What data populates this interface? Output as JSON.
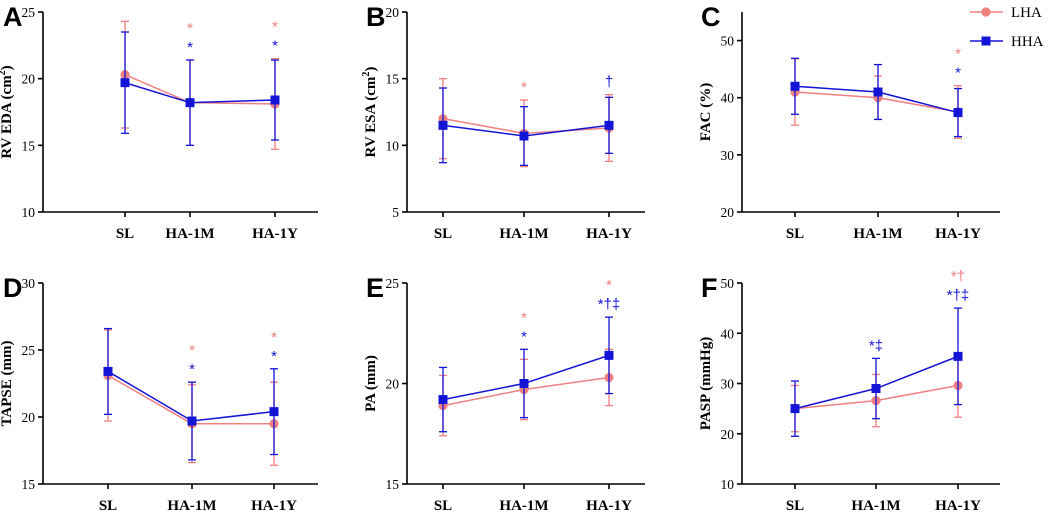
{
  "colors": {
    "LHA": "#F08080",
    "HHA": "#1414D6"
  },
  "legend": {
    "items": [
      {
        "key": "LHA",
        "label": "LHA"
      },
      {
        "key": "HHA",
        "label": "HHA"
      }
    ]
  },
  "chart_data": [
    {
      "type": "line",
      "panel": "A",
      "ylabel": "RV EDA (cm2)",
      "ylabel_main": "RV EDA (cm",
      "ylabel_sup": "2",
      "ylabel_tail": ")",
      "categories": [
        "SL",
        "HA-1M",
        "HA-1Y"
      ],
      "ylim": [
        10,
        25
      ],
      "yticks": [
        10,
        15,
        20,
        25
      ],
      "series": [
        {
          "name": "LHA",
          "values": [
            20.3,
            18.2,
            18.1
          ],
          "sd": [
            4.0,
            3.2,
            3.4
          ]
        },
        {
          "name": "HHA",
          "values": [
            19.7,
            18.2,
            18.4
          ],
          "sd": [
            3.8,
            3.2,
            3.0
          ]
        }
      ],
      "annotations": [
        {
          "category": "HA-1M",
          "series": "LHA",
          "text": "*"
        },
        {
          "category": "HA-1M",
          "series": "HHA",
          "text": "*"
        },
        {
          "category": "HA-1Y",
          "series": "LHA",
          "text": "*"
        },
        {
          "category": "HA-1Y",
          "series": "HHA",
          "text": "*"
        }
      ]
    },
    {
      "type": "line",
      "panel": "B",
      "ylabel": "RV ESA (cm2)",
      "ylabel_main": "RV ESA (cm",
      "ylabel_sup": "2",
      "ylabel_tail": ")",
      "categories": [
        "SL",
        "HA-1M",
        "HA-1Y"
      ],
      "ylim": [
        5,
        20
      ],
      "yticks": [
        5,
        10,
        15,
        20
      ],
      "series": [
        {
          "name": "LHA",
          "values": [
            12.0,
            10.9,
            11.3
          ],
          "sd": [
            3.0,
            2.5,
            2.5
          ]
        },
        {
          "name": "HHA",
          "values": [
            11.5,
            10.7,
            11.5
          ],
          "sd": [
            2.8,
            2.2,
            2.1
          ]
        }
      ],
      "annotations": [
        {
          "category": "HA-1M",
          "series": "LHA",
          "text": "*"
        },
        {
          "category": "HA-1Y",
          "series": "HHA",
          "text": "†"
        }
      ]
    },
    {
      "type": "line",
      "panel": "C",
      "ylabel": "FAC (%)",
      "ylabel_main": "FAC (%)",
      "ylabel_sup": "",
      "ylabel_tail": "",
      "categories": [
        "SL",
        "HA-1M",
        "HA-1Y"
      ],
      "ylim": [
        20,
        55
      ],
      "yticks": [
        20,
        30,
        40,
        50
      ],
      "series": [
        {
          "name": "LHA",
          "values": [
            41.0,
            40.0,
            37.5
          ],
          "sd": [
            5.8,
            3.8,
            4.6
          ]
        },
        {
          "name": "HHA",
          "values": [
            42.0,
            41.0,
            37.4
          ],
          "sd": [
            4.9,
            4.8,
            4.2
          ]
        }
      ],
      "annotations": [
        {
          "category": "HA-1Y",
          "series": "LHA",
          "text": "*"
        },
        {
          "category": "HA-1Y",
          "series": "HHA",
          "text": "*"
        }
      ]
    },
    {
      "type": "line",
      "panel": "D",
      "ylabel": "TAPSE (mm)",
      "ylabel_main": "TAPSE (mm)",
      "ylabel_sup": "",
      "ylabel_tail": "",
      "categories": [
        "SL",
        "HA-1M",
        "HA-1Y"
      ],
      "ylim": [
        15,
        30
      ],
      "yticks": [
        15,
        20,
        25,
        30
      ],
      "series": [
        {
          "name": "LHA",
          "values": [
            23.1,
            19.5,
            19.5
          ],
          "sd": [
            3.4,
            2.9,
            3.1
          ]
        },
        {
          "name": "HHA",
          "values": [
            23.4,
            19.7,
            20.4
          ],
          "sd": [
            3.2,
            2.9,
            3.2
          ]
        }
      ],
      "annotations": [
        {
          "category": "HA-1M",
          "series": "LHA",
          "text": "*"
        },
        {
          "category": "HA-1M",
          "series": "HHA",
          "text": "*"
        },
        {
          "category": "HA-1Y",
          "series": "LHA",
          "text": "*"
        },
        {
          "category": "HA-1Y",
          "series": "HHA",
          "text": "*"
        }
      ]
    },
    {
      "type": "line",
      "panel": "E",
      "ylabel": "PA (mm)",
      "ylabel_main": "PA (mm)",
      "ylabel_sup": "",
      "ylabel_tail": "",
      "categories": [
        "SL",
        "HA-1M",
        "HA-1Y"
      ],
      "ylim": [
        15,
        25
      ],
      "yticks": [
        15,
        20,
        25
      ],
      "series": [
        {
          "name": "LHA",
          "values": [
            18.9,
            19.7,
            20.3
          ],
          "sd": [
            1.5,
            1.5,
            1.4
          ]
        },
        {
          "name": "HHA",
          "values": [
            19.2,
            20.0,
            21.4
          ],
          "sd": [
            1.6,
            1.7,
            1.9
          ]
        }
      ],
      "annotations": [
        {
          "category": "HA-1M",
          "series": "LHA",
          "text": "*"
        },
        {
          "category": "HA-1M",
          "series": "HHA",
          "text": "*"
        },
        {
          "category": "HA-1Y",
          "series": "LHA",
          "text": "*"
        },
        {
          "category": "HA-1Y",
          "series": "HHA",
          "text": "*†‡"
        }
      ]
    },
    {
      "type": "line",
      "panel": "F",
      "ylabel": "PASP (mmHg)",
      "ylabel_main": "PASP (mmHg)",
      "ylabel_sup": "",
      "ylabel_tail": "",
      "categories": [
        "SL",
        "HA-1M",
        "HA-1Y"
      ],
      "ylim": [
        10,
        50
      ],
      "yticks": [
        10,
        20,
        30,
        40,
        50
      ],
      "series": [
        {
          "name": "LHA",
          "values": [
            25.0,
            26.6,
            29.6
          ],
          "sd": [
            4.6,
            5.2,
            6.3
          ]
        },
        {
          "name": "HHA",
          "values": [
            25.0,
            29.0,
            35.4
          ],
          "sd": [
            5.5,
            6.0,
            9.6
          ]
        }
      ],
      "annotations": [
        {
          "category": "HA-1M",
          "series": "HHA",
          "text": "*‡"
        },
        {
          "category": "HA-1Y",
          "series": "LHA",
          "text": "*†"
        },
        {
          "category": "HA-1Y",
          "series": "HHA",
          "text": "*†‡"
        }
      ]
    }
  ]
}
